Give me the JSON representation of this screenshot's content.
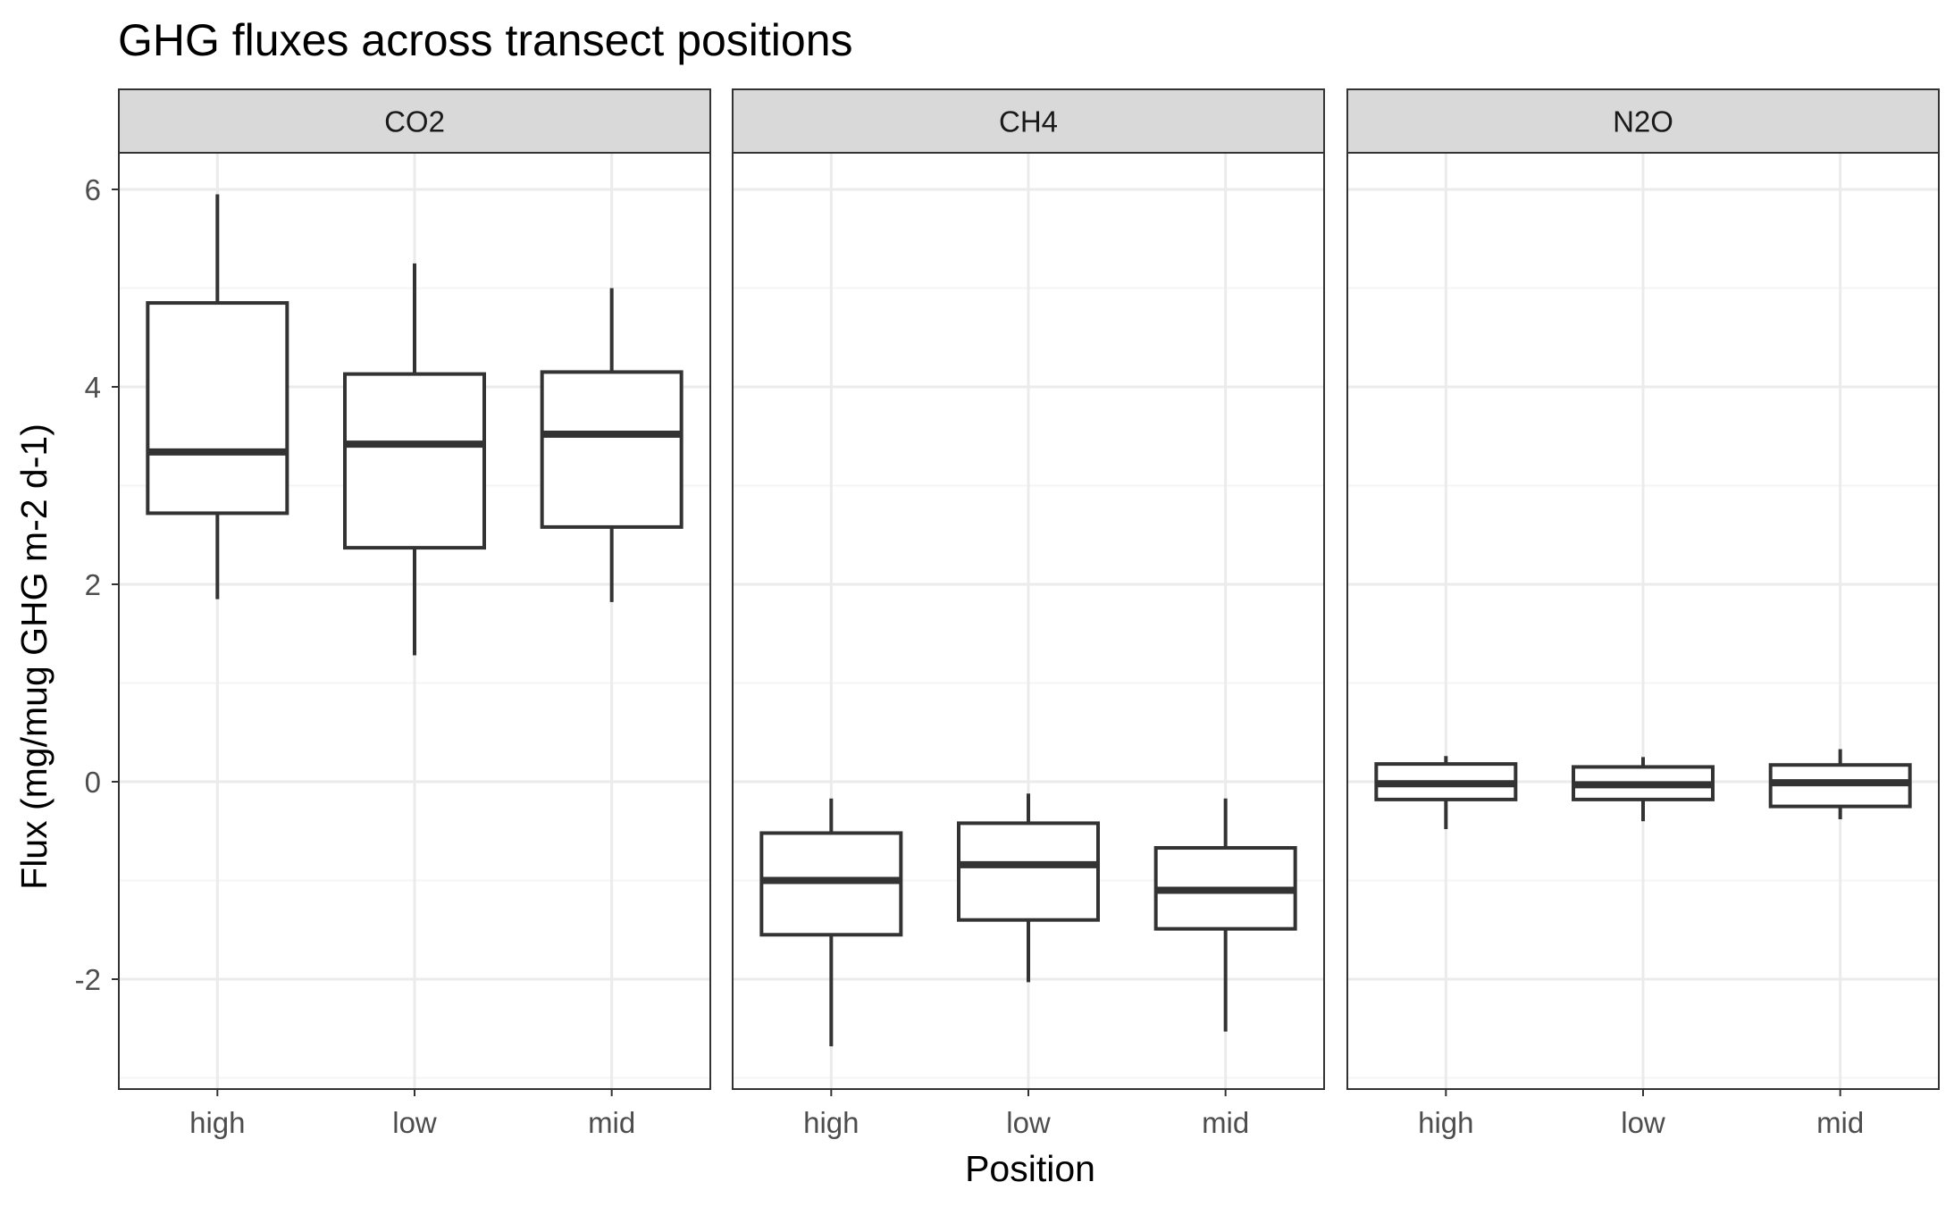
{
  "chart_data": {
    "type": "boxplot",
    "title": "GHG fluxes across transect positions",
    "xlabel": "Position",
    "ylabel": "Flux (mg/mug GHG m-2 d-1)",
    "ylim": [
      -3.1,
      6.4
    ],
    "yticks": [
      -2,
      0,
      2,
      4,
      6
    ],
    "ytick_labels": [
      "-2",
      "0",
      "2",
      "4",
      "6"
    ],
    "categories": [
      "high",
      "low",
      "mid"
    ],
    "grid": true,
    "facets": [
      {
        "name": "CO2",
        "boxes": [
          {
            "category": "high",
            "min": 1.85,
            "q1": 2.72,
            "median": 3.34,
            "q3": 4.85,
            "max": 5.95
          },
          {
            "category": "low",
            "min": 1.28,
            "q1": 2.37,
            "median": 3.42,
            "q3": 4.13,
            "max": 5.25
          },
          {
            "category": "mid",
            "min": 1.82,
            "q1": 2.58,
            "median": 3.52,
            "q3": 4.15,
            "max": 5.0
          }
        ]
      },
      {
        "name": "CH4",
        "boxes": [
          {
            "category": "high",
            "min": -2.68,
            "q1": -1.55,
            "median": -1.0,
            "q3": -0.52,
            "max": -0.17
          },
          {
            "category": "low",
            "min": -2.03,
            "q1": -1.4,
            "median": -0.84,
            "q3": -0.42,
            "max": -0.12
          },
          {
            "category": "mid",
            "min": -2.53,
            "q1": -1.49,
            "median": -1.1,
            "q3": -0.67,
            "max": -0.17
          }
        ]
      },
      {
        "name": "N2O",
        "boxes": [
          {
            "category": "high",
            "min": -0.48,
            "q1": -0.18,
            "median": -0.02,
            "q3": 0.18,
            "max": 0.26
          },
          {
            "category": "low",
            "min": -0.4,
            "q1": -0.18,
            "median": -0.03,
            "q3": 0.15,
            "max": 0.25
          },
          {
            "category": "mid",
            "min": -0.38,
            "q1": -0.25,
            "median": -0.01,
            "q3": 0.17,
            "max": 0.33
          }
        ]
      }
    ],
    "colors": {
      "box_stroke": "#333333",
      "panel_border": "#333333",
      "strip_fill": "#d9d9d9",
      "grid_major": "#ebebeb",
      "grid_minor": "#f5f5f5",
      "tick_text": "#4d4d4d"
    }
  }
}
